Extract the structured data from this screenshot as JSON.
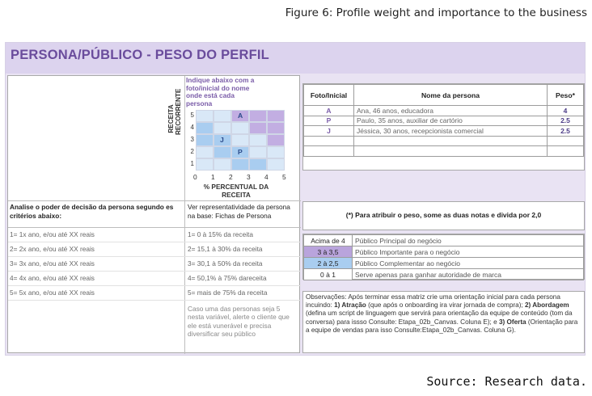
{
  "figure": {
    "caption": "Figure 6: Profile weight and importance to the business",
    "source": "Source: Research data."
  },
  "sheet": {
    "title": "PERSONA/PÚBLICO - PESO DO PERFIL",
    "colors": {
      "title_bar": "#dcd3ee",
      "sheet_bg": "#e9e3f3",
      "title_text": "#6a4c9c",
      "cell_purple": "#c2aee2",
      "cell_blue": "#a9cdf0",
      "cell_lightblue": "#d9e8f7"
    }
  },
  "matrix": {
    "instruction": "Indique abaixo com a foto/inicial do nome onde está cada persona",
    "y_label": "RECEITA RECORRENTE",
    "y_ticks": [
      "5",
      "4",
      "3",
      "2",
      "1"
    ],
    "x_ticks": [
      "0",
      "1",
      "2",
      "3",
      "4",
      "5"
    ],
    "x_label": "% PERCENTUAL DA RECEITA",
    "markers": [
      {
        "initial": "A",
        "col": 3,
        "row": 5
      },
      {
        "initial": "J",
        "col": 2,
        "row": 3
      },
      {
        "initial": "P",
        "col": 3,
        "row": 2
      }
    ]
  },
  "left_criteria": {
    "header": "Analise o poder de decisão da persona segundo es critérios abaixo:",
    "items": [
      "1= 1x ano, e/ou até XX reais",
      "2= 2x ano, e/ou até XX reais",
      "3= 3x ano, e/ou até XX reais",
      "4= 4x ano, e/ou até XX reais",
      "5= 5x ano, e/ou até XX reais"
    ]
  },
  "representativity": {
    "header": "Ver representatividade da persona na base: Fichas de Persona",
    "items": [
      "1= 0 à 15% da receita",
      "2= 15,1 à 30% da receita",
      "3= 30,1 à 50% da receita",
      "4= 50,1% à 75% dareceita",
      "5= mais de 75% da receita"
    ],
    "note": "Caso uma das personas seja 5 nesta variável, alerte o cliente que ele está vunerável e precisa diversificar seu público"
  },
  "personas_table": {
    "headers": [
      "Foto/Inicial",
      "Nome da persona",
      "Peso*"
    ],
    "rows": [
      {
        "initial": "A",
        "name": "Ana, 46 anos, educadora",
        "weight": "4"
      },
      {
        "initial": "P",
        "name": "Paulo, 35 anos, auxiliar de cartório",
        "weight": "2.5"
      },
      {
        "initial": "J",
        "name": "Jéssica, 30 anos, recepcionista comercial",
        "weight": "2.5"
      },
      {
        "initial": "",
        "name": "",
        "weight": ""
      },
      {
        "initial": "",
        "name": "",
        "weight": ""
      }
    ]
  },
  "weight_note": "(*) Para atribuir o peso, some as duas notas e divida por 2,0",
  "legend": [
    {
      "range": "Acima de 4",
      "text": "Público Principal do negócio",
      "color": "#ffffff"
    },
    {
      "range": "3 à 3,5",
      "text": "Público Importante para o negócio",
      "color": "#b9a4dc"
    },
    {
      "range": "2 à 2,5",
      "text": "Público Complementar ao negócio",
      "color": "#a9cdf0"
    },
    {
      "range": "0 à 1",
      "text": "Serve apenas para ganhar autoridade de marca",
      "color": "#ffffff"
    }
  ],
  "observations": {
    "p1": "Observações: Após terminar essa matriz crie uma orientação inicial para cada persona incuindo: ",
    "b1": "1) Atração",
    "p2": " (que após o onboarding ira virar jornada de compra); ",
    "b2": "2) Abordagem",
    "p3": " (defina um script de linguagem que servirá para orientação da equipe de conteúdo (tom da conversa) para issso Consulte: Etapa_02b_Canvas. Coluna E); e ",
    "b3": "3) Oferta",
    "p4": " (Orientação para a equipe de vendas para isso Consulte:Etapa_02b_Canvas. Coluna G)."
  }
}
